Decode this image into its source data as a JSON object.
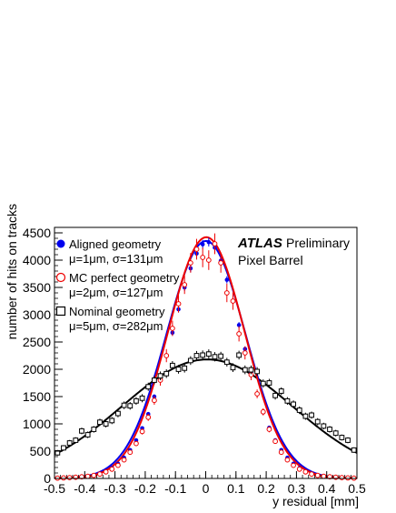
{
  "chart_data": {
    "type": "scatter",
    "xlabel": "y residual [mm]",
    "ylabel": "number of hits on tracks",
    "xlim": [
      -0.5,
      0.5
    ],
    "ylim": [
      0,
      4600
    ],
    "x_ticks": [
      "-0.5",
      "-0.4",
      "-0.3",
      "-0.2",
      "-0.1",
      "0",
      "0.1",
      "0.2",
      "0.3",
      "0.4",
      "0.5"
    ],
    "x_tick_values": [
      -0.5,
      -0.4,
      -0.3,
      -0.2,
      -0.1,
      0,
      0.1,
      0.2,
      0.3,
      0.4,
      0.5
    ],
    "y_ticks": [
      "0",
      "500",
      "1000",
      "1500",
      "2000",
      "2500",
      "3000",
      "3500",
      "4000",
      "4500"
    ],
    "y_tick_values": [
      0,
      500,
      1000,
      1500,
      2000,
      2500,
      3000,
      3500,
      4000,
      4500
    ],
    "annotation": {
      "atlas": "ATLAS",
      "preliminary": "Preliminary",
      "detector": "Pixel Barrel"
    },
    "legend_position": "top-left",
    "series": [
      {
        "name": "Aligned geometry",
        "stats": "μ=1μm, σ=131μm",
        "color": "#0000ee",
        "marker": "filled-circle",
        "fit": {
          "amplitude": 4350,
          "mean": 0.001,
          "sigma": 0.131
        },
        "x": [
          -0.49,
          -0.47,
          -0.45,
          -0.43,
          -0.41,
          -0.39,
          -0.37,
          -0.35,
          -0.33,
          -0.31,
          -0.29,
          -0.27,
          -0.25,
          -0.23,
          -0.21,
          -0.19,
          -0.17,
          -0.15,
          -0.13,
          -0.11,
          -0.09,
          -0.07,
          -0.05,
          -0.03,
          -0.01,
          0.01,
          0.03,
          0.05,
          0.07,
          0.09,
          0.11,
          0.13,
          0.15,
          0.17,
          0.19,
          0.21,
          0.23,
          0.25,
          0.27,
          0.29,
          0.31,
          0.33,
          0.35,
          0.37,
          0.39,
          0.41,
          0.43,
          0.45,
          0.47,
          0.49
        ],
        "y": [
          4,
          8,
          12,
          18,
          28,
          40,
          60,
          90,
          130,
          190,
          270,
          380,
          520,
          700,
          920,
          1180,
          1500,
          1860,
          2250,
          2670,
          3100,
          3500,
          3850,
          4120,
          4290,
          4330,
          4230,
          3990,
          3640,
          3250,
          2810,
          2370,
          1940,
          1550,
          1210,
          930,
          700,
          520,
          380,
          270,
          190,
          130,
          90,
          60,
          40,
          28,
          18,
          12,
          8,
          4
        ],
        "yerr": [
          2,
          3,
          4,
          5,
          6,
          7,
          8,
          10,
          12,
          15,
          18,
          20,
          25,
          28,
          32,
          35,
          40,
          45,
          50,
          55,
          60,
          65,
          70,
          75,
          80,
          80,
          75,
          70,
          65,
          60,
          55,
          50,
          45,
          40,
          35,
          32,
          28,
          25,
          20,
          18,
          15,
          12,
          10,
          8,
          7,
          6,
          5,
          4,
          3,
          2
        ]
      },
      {
        "name": "MC perfect geometry",
        "stats": "μ=2μm, σ=127μm",
        "color": "#ee0000",
        "marker": "open-circle",
        "fit": {
          "amplitude": 4420,
          "mean": 0.002,
          "sigma": 0.127
        },
        "x": [
          -0.49,
          -0.47,
          -0.45,
          -0.43,
          -0.41,
          -0.39,
          -0.37,
          -0.35,
          -0.33,
          -0.31,
          -0.29,
          -0.27,
          -0.25,
          -0.23,
          -0.21,
          -0.19,
          -0.17,
          -0.15,
          -0.13,
          -0.11,
          -0.09,
          -0.07,
          -0.05,
          -0.03,
          -0.01,
          0.01,
          0.03,
          0.05,
          0.07,
          0.09,
          0.11,
          0.13,
          0.15,
          0.17,
          0.19,
          0.21,
          0.23,
          0.25,
          0.27,
          0.29,
          0.31,
          0.33,
          0.35,
          0.37,
          0.39,
          0.41,
          0.43,
          0.45,
          0.47,
          0.49
        ],
        "y": [
          6,
          10,
          15,
          22,
          30,
          40,
          55,
          80,
          120,
          170,
          240,
          340,
          480,
          640,
          860,
          1120,
          1430,
          1800,
          2250,
          2750,
          3200,
          3550,
          3950,
          4200,
          4050,
          4000,
          4300,
          3950,
          3400,
          3250,
          2650,
          2300,
          1900,
          1550,
          1220,
          900,
          680,
          480,
          340,
          240,
          170,
          120,
          80,
          55,
          40,
          30,
          22,
          15,
          10,
          6
        ],
        "yerr": [
          3,
          4,
          5,
          6,
          7,
          8,
          10,
          12,
          15,
          18,
          22,
          28,
          35,
          45,
          55,
          65,
          80,
          100,
          120,
          140,
          160,
          170,
          180,
          190,
          180,
          180,
          190,
          180,
          170,
          160,
          140,
          120,
          100,
          80,
          65,
          55,
          45,
          35,
          28,
          22,
          18,
          15,
          12,
          10,
          8,
          7,
          6,
          5,
          4,
          3
        ]
      },
      {
        "name": "Nominal geometry",
        "stats": "μ=5μm, σ=282μm",
        "color": "#000000",
        "marker": "open-square",
        "fit": {
          "amplitude": 2180,
          "mean": 0.005,
          "sigma": 0.282
        },
        "x": [
          -0.49,
          -0.47,
          -0.45,
          -0.43,
          -0.41,
          -0.39,
          -0.37,
          -0.35,
          -0.33,
          -0.31,
          -0.29,
          -0.27,
          -0.25,
          -0.23,
          -0.21,
          -0.19,
          -0.17,
          -0.15,
          -0.13,
          -0.11,
          -0.09,
          -0.07,
          -0.05,
          -0.03,
          -0.01,
          0.01,
          0.03,
          0.05,
          0.07,
          0.09,
          0.11,
          0.13,
          0.15,
          0.17,
          0.19,
          0.21,
          0.23,
          0.25,
          0.27,
          0.29,
          0.31,
          0.33,
          0.35,
          0.37,
          0.39,
          0.41,
          0.43,
          0.45,
          0.47,
          0.49
        ],
        "y": [
          470,
          560,
          650,
          700,
          870,
          800,
          900,
          1030,
          1000,
          1060,
          1190,
          1340,
          1330,
          1420,
          1470,
          1680,
          1800,
          1880,
          1920,
          2070,
          2000,
          2020,
          2160,
          2250,
          2260,
          2280,
          2230,
          2240,
          2130,
          2030,
          2260,
          1990,
          1990,
          1960,
          1740,
          1750,
          1520,
          1600,
          1420,
          1360,
          1250,
          1140,
          1160,
          1040,
          960,
          900,
          830,
          750,
          700,
          520
        ],
        "yerr": [
          50,
          50,
          55,
          55,
          60,
          60,
          60,
          65,
          65,
          65,
          70,
          70,
          70,
          70,
          75,
          75,
          75,
          80,
          80,
          80,
          80,
          80,
          80,
          85,
          85,
          85,
          85,
          80,
          80,
          80,
          80,
          80,
          80,
          80,
          75,
          75,
          75,
          70,
          70,
          70,
          70,
          65,
          65,
          65,
          60,
          60,
          60,
          55,
          55,
          50
        ]
      }
    ]
  }
}
